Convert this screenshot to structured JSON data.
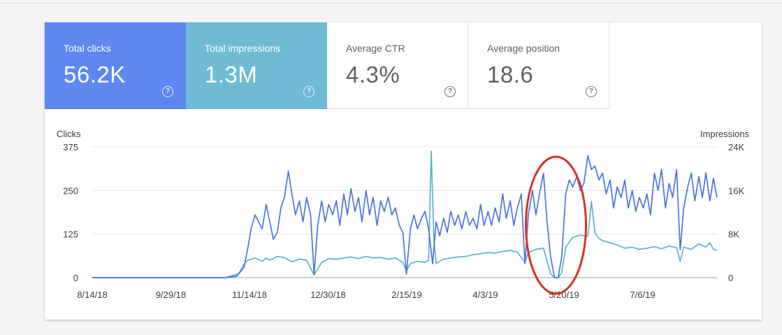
{
  "tiles": [
    {
      "label": "Total clicks",
      "value": "56.2K"
    },
    {
      "label": "Total impressions",
      "value": "1.3M"
    },
    {
      "label": "Average CTR",
      "value": "4.3%"
    },
    {
      "label": "Average position",
      "value": "18.6"
    }
  ],
  "help_glyph": "?",
  "chart_data": {
    "type": "line",
    "left_axis_label": "Clicks",
    "right_axis_label": "Impressions",
    "left_ticks": [
      "375",
      "250",
      "125",
      "0"
    ],
    "right_ticks": [
      "24K",
      "16K",
      "8K",
      "0"
    ],
    "left_range": [
      0,
      375
    ],
    "right_range": [
      0,
      24000
    ],
    "x_tick_labels": [
      "8/14/18",
      "9/29/18",
      "11/14/18",
      "12/30/18",
      "2/15/19",
      "4/3/19",
      "5/20/19",
      "7/6/19"
    ],
    "grid": true,
    "annotation": "red ellipse around the dip to zero in early May 2019",
    "colors": {
      "clicks": "#4a74e0",
      "impressions": "#5bb3cc",
      "grid": "#e6e6e6",
      "annotation": "#d93025"
    },
    "series": [
      {
        "axis": "left",
        "points": [
          [
            0,
            0
          ],
          [
            0.05,
            0
          ],
          [
            0.15,
            0
          ],
          [
            0.25,
            0
          ],
          [
            0.3,
            0
          ],
          [
            0.325,
            4
          ],
          [
            0.333,
            15
          ],
          [
            0.342,
            30
          ],
          [
            0.35,
            80
          ],
          [
            0.358,
            140
          ],
          [
            0.367,
            180
          ],
          [
            0.375,
            160
          ],
          [
            0.383,
            140
          ],
          [
            0.392,
            210
          ],
          [
            0.4,
            160
          ],
          [
            0.408,
            110
          ],
          [
            0.417,
            130
          ],
          [
            0.425,
            200
          ],
          [
            0.433,
            230
          ],
          [
            0.442,
            305
          ],
          [
            0.45,
            240
          ],
          [
            0.458,
            180
          ],
          [
            0.467,
            220
          ],
          [
            0.475,
            160
          ],
          [
            0.483,
            230
          ],
          [
            0.492,
            180
          ],
          [
            0.5,
            10
          ],
          [
            0.508,
            150
          ],
          [
            0.517,
            220
          ],
          [
            0.525,
            160
          ],
          [
            0.533,
            210
          ],
          [
            0.542,
            180
          ],
          [
            0.55,
            220
          ],
          [
            0.558,
            150
          ],
          [
            0.567,
            240
          ],
          [
            0.575,
            180
          ],
          [
            0.583,
            255
          ],
          [
            0.592,
            190
          ],
          [
            0.6,
            230
          ],
          [
            0.608,
            160
          ],
          [
            0.617,
            250
          ],
          [
            0.625,
            180
          ],
          [
            0.633,
            230
          ],
          [
            0.642,
            150
          ],
          [
            0.65,
            220
          ],
          [
            0.658,
            190
          ],
          [
            0.667,
            230
          ],
          [
            0.675,
            180
          ],
          [
            0.683,
            200
          ],
          [
            0.692,
            150
          ],
          [
            0.7,
            130
          ],
          [
            0.708,
            10
          ],
          [
            0.717,
            140
          ],
          [
            0.725,
            180
          ],
          [
            0.733,
            140
          ],
          [
            0.742,
            170
          ],
          [
            0.75,
            190
          ],
          [
            0.758,
            140
          ],
          [
            0.767,
            40
          ],
          [
            0.775,
            160
          ],
          [
            0.783,
            120
          ],
          [
            0.792,
            170
          ],
          [
            0.8,
            130
          ],
          [
            0.808,
            190
          ],
          [
            0.817,
            150
          ],
          [
            0.825,
            180
          ],
          [
            0.833,
            140
          ],
          [
            0.842,
            190
          ],
          [
            0.85,
            150
          ],
          [
            0.858,
            170
          ],
          [
            0.867,
            140
          ],
          [
            0.875,
            210
          ],
          [
            0.883,
            150
          ],
          [
            0.892,
            190
          ],
          [
            0.9,
            150
          ],
          [
            0.908,
            200
          ],
          [
            0.917,
            160
          ],
          [
            0.925,
            240
          ],
          [
            0.933,
            170
          ],
          [
            0.942,
            220
          ],
          [
            0.95,
            150
          ],
          [
            0.958,
            200
          ],
          [
            0.967,
            240
          ],
          [
            0.975,
            40
          ],
          [
            0.983,
            180
          ],
          [
            0.992,
            250
          ],
          [
            1.0,
            180
          ],
          [
            1.008,
            240
          ],
          [
            1.017,
            300
          ],
          [
            1.025,
            160
          ],
          [
            1.033,
            60
          ],
          [
            1.042,
            0
          ],
          [
            1.05,
            0
          ],
          [
            1.058,
            60
          ],
          [
            1.067,
            240
          ],
          [
            1.075,
            280
          ],
          [
            1.083,
            260
          ],
          [
            1.092,
            290
          ],
          [
            1.1,
            250
          ],
          [
            1.108,
            270
          ],
          [
            1.117,
            350
          ],
          [
            1.125,
            310
          ],
          [
            1.133,
            320
          ],
          [
            1.142,
            280
          ],
          [
            1.15,
            300
          ],
          [
            1.158,
            240
          ],
          [
            1.167,
            280
          ],
          [
            1.175,
            200
          ],
          [
            1.183,
            260
          ],
          [
            1.192,
            230
          ],
          [
            1.2,
            280
          ],
          [
            1.208,
            200
          ],
          [
            1.217,
            250
          ],
          [
            1.225,
            190
          ],
          [
            1.233,
            230
          ],
          [
            1.242,
            200
          ],
          [
            1.25,
            240
          ],
          [
            1.258,
            180
          ],
          [
            1.267,
            300
          ],
          [
            1.275,
            250
          ],
          [
            1.283,
            310
          ],
          [
            1.292,
            200
          ],
          [
            1.3,
            270
          ],
          [
            1.308,
            230
          ],
          [
            1.317,
            310
          ],
          [
            1.325,
            80
          ],
          [
            1.333,
            200
          ],
          [
            1.342,
            260
          ],
          [
            1.35,
            300
          ],
          [
            1.358,
            220
          ],
          [
            1.367,
            290
          ],
          [
            1.375,
            230
          ],
          [
            1.383,
            300
          ],
          [
            1.392,
            220
          ],
          [
            1.4,
            285
          ],
          [
            1.408,
            230
          ]
        ]
      },
      {
        "axis": "right",
        "points": [
          [
            0,
            0
          ],
          [
            0.25,
            0
          ],
          [
            0.3,
            0
          ],
          [
            0.33,
            700
          ],
          [
            0.342,
            2500
          ],
          [
            0.35,
            3200
          ],
          [
            0.367,
            3600
          ],
          [
            0.383,
            3000
          ],
          [
            0.392,
            3600
          ],
          [
            0.4,
            3200
          ],
          [
            0.417,
            3900
          ],
          [
            0.433,
            3700
          ],
          [
            0.45,
            2900
          ],
          [
            0.467,
            3400
          ],
          [
            0.483,
            3200
          ],
          [
            0.5,
            500
          ],
          [
            0.517,
            2800
          ],
          [
            0.533,
            3500
          ],
          [
            0.55,
            3400
          ],
          [
            0.567,
            3600
          ],
          [
            0.583,
            3800
          ],
          [
            0.6,
            3500
          ],
          [
            0.617,
            3900
          ],
          [
            0.633,
            3600
          ],
          [
            0.65,
            3700
          ],
          [
            0.667,
            3400
          ],
          [
            0.683,
            3600
          ],
          [
            0.7,
            2800
          ],
          [
            0.708,
            1200
          ],
          [
            0.717,
            2600
          ],
          [
            0.733,
            3000
          ],
          [
            0.75,
            2800
          ],
          [
            0.758,
            3200
          ],
          [
            0.764,
            23200
          ],
          [
            0.77,
            7000
          ],
          [
            0.775,
            2600
          ],
          [
            0.792,
            3400
          ],
          [
            0.808,
            3600
          ],
          [
            0.825,
            3800
          ],
          [
            0.842,
            3900
          ],
          [
            0.858,
            4200
          ],
          [
            0.875,
            4400
          ],
          [
            0.892,
            4600
          ],
          [
            0.908,
            4500
          ],
          [
            0.925,
            4800
          ],
          [
            0.942,
            5000
          ],
          [
            0.958,
            4700
          ],
          [
            0.975,
            2800
          ],
          [
            0.983,
            4600
          ],
          [
            1.0,
            5200
          ],
          [
            1.017,
            5400
          ],
          [
            1.025,
            3000
          ],
          [
            1.033,
            700
          ],
          [
            1.042,
            0
          ],
          [
            1.05,
            0
          ],
          [
            1.058,
            900
          ],
          [
            1.067,
            5600
          ],
          [
            1.083,
            7400
          ],
          [
            1.1,
            7800
          ],
          [
            1.117,
            7600
          ],
          [
            1.125,
            14000
          ],
          [
            1.133,
            8200
          ],
          [
            1.142,
            7200
          ],
          [
            1.15,
            6800
          ],
          [
            1.167,
            6400
          ],
          [
            1.183,
            6000
          ],
          [
            1.2,
            5400
          ],
          [
            1.217,
            5600
          ],
          [
            1.233,
            5200
          ],
          [
            1.25,
            5400
          ],
          [
            1.267,
            5700
          ],
          [
            1.283,
            5300
          ],
          [
            1.3,
            5800
          ],
          [
            1.317,
            5500
          ],
          [
            1.325,
            3000
          ],
          [
            1.333,
            5600
          ],
          [
            1.35,
            5200
          ],
          [
            1.367,
            6200
          ],
          [
            1.383,
            5600
          ],
          [
            1.392,
            6400
          ],
          [
            1.4,
            5200
          ],
          [
            1.408,
            5000
          ]
        ]
      }
    ]
  }
}
